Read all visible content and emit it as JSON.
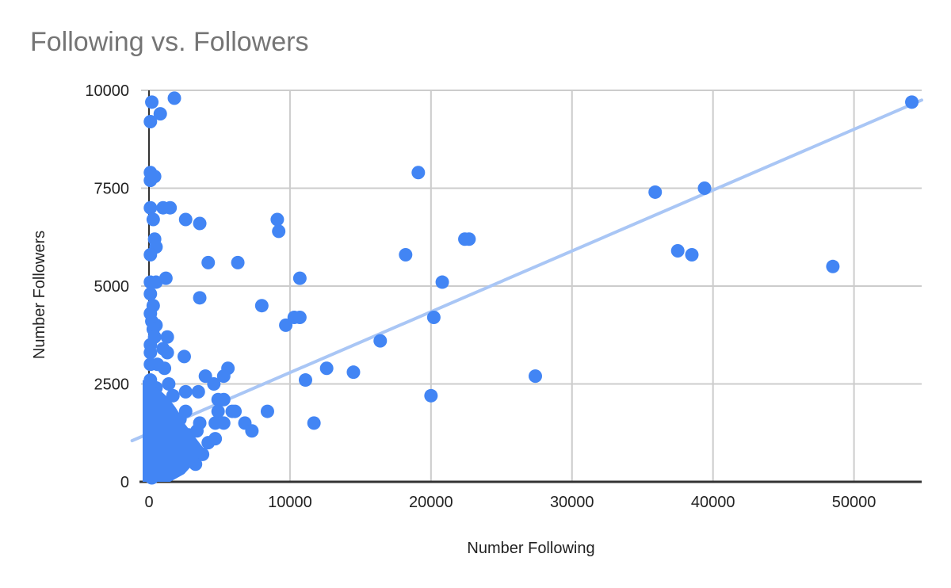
{
  "chart_data": {
    "type": "scatter",
    "title": "Following vs. Followers",
    "xlabel": "Number Following",
    "ylabel": "Number Followers",
    "xlim": [
      0,
      54800
    ],
    "ylim": [
      0,
      10000
    ],
    "x_ticks": [
      0,
      10000,
      20000,
      30000,
      40000,
      50000
    ],
    "y_ticks": [
      0,
      2500,
      5000,
      7500,
      10000
    ],
    "x_tick_labels": [
      "0",
      "10000",
      "20000",
      "30000",
      "40000",
      "50000"
    ],
    "y_tick_labels": [
      "0",
      "2500",
      "5000",
      "7500",
      "10000"
    ],
    "grid": true,
    "legend": "none",
    "series": [
      {
        "name": "Number Followers",
        "color": "#4285f4",
        "points": [
          [
            200,
            9700
          ],
          [
            1800,
            9800
          ],
          [
            800,
            9400
          ],
          [
            100,
            9200
          ],
          [
            100,
            7900
          ],
          [
            400,
            7800
          ],
          [
            100,
            7700
          ],
          [
            100,
            7000
          ],
          [
            1000,
            7000
          ],
          [
            1500,
            7000
          ],
          [
            300,
            6700
          ],
          [
            2600,
            6700
          ],
          [
            3600,
            6600
          ],
          [
            400,
            6200
          ],
          [
            500,
            6000
          ],
          [
            100,
            5800
          ],
          [
            1200,
            5200
          ],
          [
            100,
            5100
          ],
          [
            500,
            5100
          ],
          [
            4200,
            5600
          ],
          [
            6300,
            5600
          ],
          [
            100,
            4800
          ],
          [
            3600,
            4700
          ],
          [
            300,
            4500
          ],
          [
            8000,
            4500
          ],
          [
            100,
            4300
          ],
          [
            200,
            4100
          ],
          [
            500,
            4000
          ],
          [
            300,
            3900
          ],
          [
            400,
            3700
          ],
          [
            1300,
            3700
          ],
          [
            100,
            3500
          ],
          [
            1000,
            3400
          ],
          [
            100,
            3300
          ],
          [
            1300,
            3300
          ],
          [
            2500,
            3200
          ],
          [
            100,
            3000
          ],
          [
            600,
            3000
          ],
          [
            1100,
            2900
          ],
          [
            5600,
            2900
          ],
          [
            4000,
            2700
          ],
          [
            5300,
            2700
          ],
          [
            100,
            2600
          ],
          [
            4600,
            2500
          ],
          [
            1400,
            2500
          ],
          [
            500,
            2400
          ],
          [
            300,
            2200
          ],
          [
            1700,
            2200
          ],
          [
            2600,
            2300
          ],
          [
            3500,
            2300
          ],
          [
            4900,
            2100
          ],
          [
            5300,
            2100
          ],
          [
            1000,
            2000
          ],
          [
            100,
            1900
          ],
          [
            2600,
            1800
          ],
          [
            4900,
            1800
          ],
          [
            5900,
            1800
          ],
          [
            6100,
            1800
          ],
          [
            8400,
            1800
          ],
          [
            100,
            1700
          ],
          [
            1300,
            1600
          ],
          [
            2200,
            1600
          ],
          [
            100,
            1500
          ],
          [
            4700,
            1500
          ],
          [
            5300,
            1500
          ],
          [
            6800,
            1500
          ],
          [
            3600,
            1500
          ],
          [
            7300,
            1300
          ],
          [
            3400,
            1300
          ],
          [
            2800,
            1200
          ],
          [
            4700,
            1100
          ],
          [
            4200,
            1000
          ],
          [
            3000,
            900
          ],
          [
            1900,
            800
          ],
          [
            3800,
            700
          ],
          [
            2400,
            600
          ],
          [
            3300,
            450
          ],
          [
            1700,
            300
          ],
          [
            500,
            200
          ],
          [
            1000,
            300
          ],
          [
            200,
            100
          ],
          [
            600,
            500
          ],
          [
            1200,
            700
          ],
          [
            300,
            1100
          ],
          [
            800,
            900
          ],
          [
            200,
            600
          ],
          [
            1500,
            1000
          ],
          [
            2000,
            400
          ],
          [
            100,
            300
          ],
          [
            9100,
            6700
          ],
          [
            9200,
            6400
          ],
          [
            10700,
            5200
          ],
          [
            9700,
            4000
          ],
          [
            10300,
            4200
          ],
          [
            10700,
            4200
          ],
          [
            12600,
            2900
          ],
          [
            11100,
            2600
          ],
          [
            14500,
            2800
          ],
          [
            11700,
            1500
          ],
          [
            16400,
            3600
          ],
          [
            19100,
            7900
          ],
          [
            18200,
            5800
          ],
          [
            22400,
            6200
          ],
          [
            22700,
            6200
          ],
          [
            20800,
            5100
          ],
          [
            20200,
            4200
          ],
          [
            20000,
            2200
          ],
          [
            27400,
            2700
          ],
          [
            35900,
            7400
          ],
          [
            39400,
            7500
          ],
          [
            37500,
            5900
          ],
          [
            38500,
            5800
          ],
          [
            48500,
            5500
          ],
          [
            54100,
            9700
          ]
        ]
      }
    ],
    "trendline": {
      "type": "linear",
      "color": "#a9c6f5",
      "start": [
        -1200,
        1050
      ],
      "end": [
        54800,
        9750
      ]
    }
  }
}
